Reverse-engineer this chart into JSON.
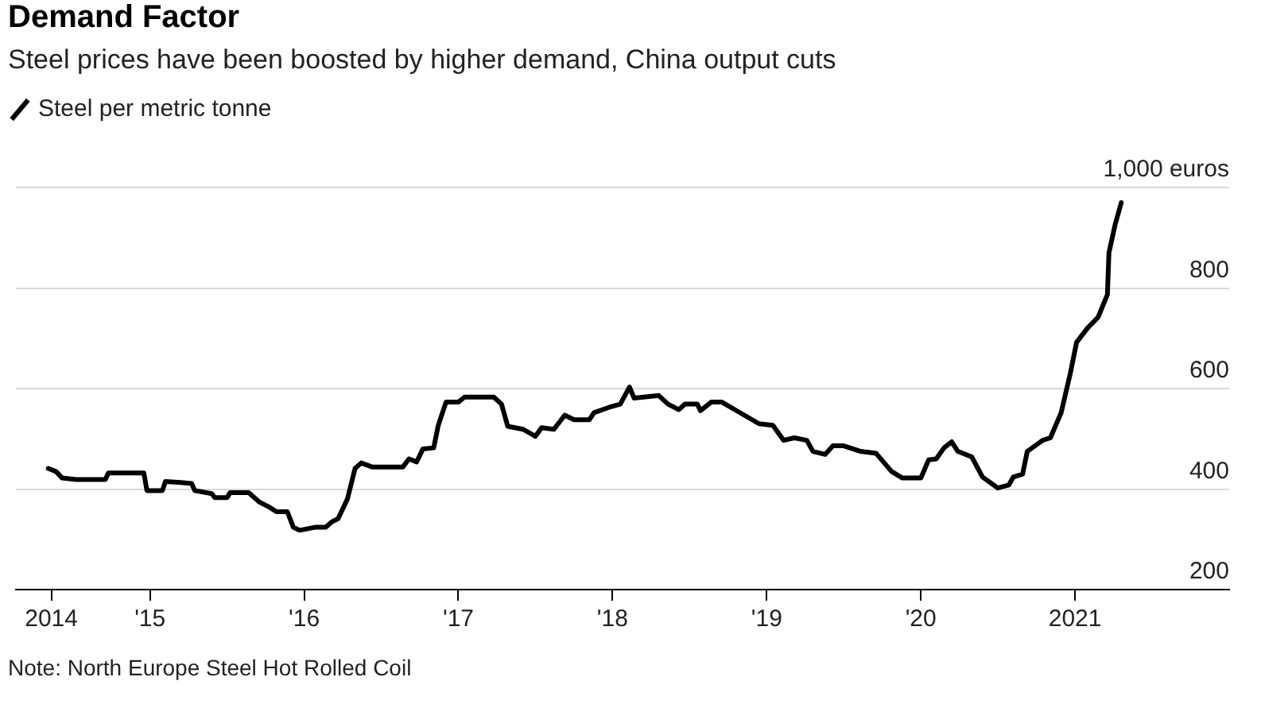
{
  "chart_data": {
    "type": "line",
    "title": "Demand Factor",
    "subtitle": "Steel prices have been boosted by higher demand, China output cuts",
    "legend": "top left",
    "grid": "y",
    "line_style": "solid",
    "marker": "none",
    "annotations": [
      "Note: North Europe Steel Hot Rolled Coil"
    ],
    "xlim": [
      2014.13,
      2022
    ],
    "xticks": [
      {
        "value": 2014.36,
        "label": "2014"
      },
      {
        "value": 2015,
        "label": "'15"
      },
      {
        "value": 2016,
        "label": "'16"
      },
      {
        "value": 2017,
        "label": "'17"
      },
      {
        "value": 2018,
        "label": "'18"
      },
      {
        "value": 2019,
        "label": "'19"
      },
      {
        "value": 2020,
        "label": "'20"
      },
      {
        "value": 2021,
        "label": "2021"
      }
    ],
    "ylim": [
      200,
      1000
    ],
    "yticks": [
      200,
      400,
      600,
      800,
      {
        "value": 1000,
        "label": "1,000 euros"
      }
    ],
    "series": [
      {
        "name": "Steel per metric tonne",
        "color": "#000000",
        "x": [
          2014.34,
          2014.39,
          2014.43,
          2014.52,
          2014.71,
          2014.73,
          2014.96,
          2014.98,
          2015.08,
          2015.1,
          2015.2,
          2015.27,
          2015.29,
          2015.4,
          2015.42,
          2015.5,
          2015.52,
          2015.64,
          2015.71,
          2015.78,
          2015.82,
          2015.89,
          2015.93,
          2015.97,
          2016.07,
          2016.14,
          2016.18,
          2016.22,
          2016.28,
          2016.33,
          2016.37,
          2016.44,
          2016.64,
          2016.68,
          2016.73,
          2016.77,
          2016.84,
          2016.87,
          2016.92,
          2017.0,
          2017.04,
          2017.23,
          2017.28,
          2017.32,
          2017.42,
          2017.5,
          2017.54,
          2017.62,
          2017.69,
          2017.75,
          2017.85,
          2017.88,
          2017.99,
          2018.05,
          2018.11,
          2018.14,
          2018.3,
          2018.36,
          2018.43,
          2018.47,
          2018.55,
          2018.57,
          2018.64,
          2018.71,
          2018.81,
          2018.95,
          2019.04,
          2019.11,
          2019.18,
          2019.26,
          2019.3,
          2019.38,
          2019.43,
          2019.5,
          2019.61,
          2019.71,
          2019.81,
          2019.88,
          2020.0,
          2020.05,
          2020.1,
          2020.15,
          2020.2,
          2020.24,
          2020.33,
          2020.4,
          2020.5,
          2020.57,
          2020.6,
          2020.66,
          2020.69,
          2020.79,
          2020.84,
          2020.91,
          2020.97,
          2021.01,
          2021.08,
          2021.15,
          2021.21,
          2021.22,
          2021.26,
          2021.3
        ],
        "values": [
          441,
          435,
          422,
          419,
          419,
          432,
          432,
          397,
          397,
          415,
          413,
          411,
          397,
          391,
          383,
          383,
          393,
          393,
          374,
          363,
          355,
          355,
          324,
          318,
          324,
          324,
          335,
          341,
          380,
          441,
          452,
          444,
          444,
          460,
          454,
          480,
          482,
          527,
          573,
          573,
          583,
          583,
          569,
          525,
          519,
          505,
          522,
          519,
          547,
          538,
          538,
          552,
          564,
          569,
          603,
          581,
          586,
          569,
          558,
          569,
          569,
          556,
          573,
          573,
          555,
          530,
          527,
          497,
          502,
          497,
          475,
          469,
          486,
          486,
          475,
          471,
          435,
          422,
          422,
          458,
          460,
          482,
          494,
          475,
          464,
          424,
          402,
          408,
          424,
          430,
          475,
          497,
          502,
          552,
          631,
          692,
          720,
          742,
          787,
          870,
          926,
          970
        ]
      }
    ]
  }
}
